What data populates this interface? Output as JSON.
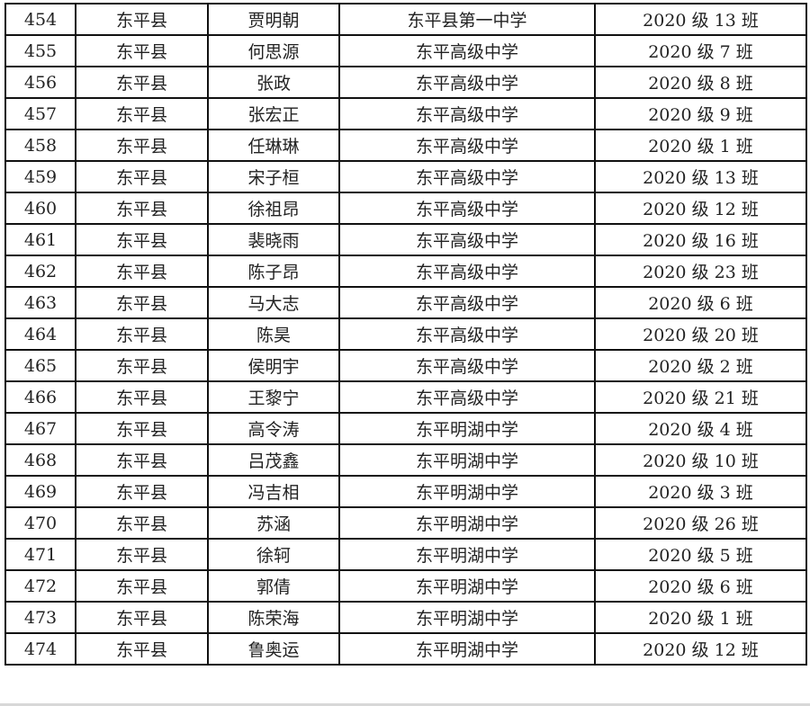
{
  "table": {
    "rows": [
      [
        "454",
        "东平县",
        "贾明朝",
        "东平县第一中学",
        "2020 级 13 班"
      ],
      [
        "455",
        "东平县",
        "何思源",
        "东平高级中学",
        "2020 级 7 班"
      ],
      [
        "456",
        "东平县",
        "张政",
        "东平高级中学",
        "2020 级 8 班"
      ],
      [
        "457",
        "东平县",
        "张宏正",
        "东平高级中学",
        "2020 级 9 班"
      ],
      [
        "458",
        "东平县",
        "任琳琳",
        "东平高级中学",
        "2020 级 1 班"
      ],
      [
        "459",
        "东平县",
        "宋子桓",
        "东平高级中学",
        "2020 级 13 班"
      ],
      [
        "460",
        "东平县",
        "徐祖昂",
        "东平高级中学",
        "2020 级 12 班"
      ],
      [
        "461",
        "东平县",
        "裴晓雨",
        "东平高级中学",
        "2020 级 16 班"
      ],
      [
        "462",
        "东平县",
        "陈子昂",
        "东平高级中学",
        "2020 级 23 班"
      ],
      [
        "463",
        "东平县",
        "马大志",
        "东平高级中学",
        "2020 级 6 班"
      ],
      [
        "464",
        "东平县",
        "陈昊",
        "东平高级中学",
        "2020 级 20 班"
      ],
      [
        "465",
        "东平县",
        "侯明宇",
        "东平高级中学",
        "2020 级 2 班"
      ],
      [
        "466",
        "东平县",
        "王黎宁",
        "东平高级中学",
        "2020 级 21 班"
      ],
      [
        "467",
        "东平县",
        "高令涛",
        "东平明湖中学",
        "2020 级 4 班"
      ],
      [
        "468",
        "东平县",
        "吕茂鑫",
        "东平明湖中学",
        "2020 级 10 班"
      ],
      [
        "469",
        "东平县",
        "冯吉相",
        "东平明湖中学",
        "2020 级 3 班"
      ],
      [
        "470",
        "东平县",
        "苏涵",
        "东平明湖中学",
        "2020 级 26 班"
      ],
      [
        "471",
        "东平县",
        "徐轲",
        "东平明湖中学",
        "2020 级 5 班"
      ],
      [
        "472",
        "东平县",
        "郭倩",
        "东平明湖中学",
        "2020 级 6 班"
      ],
      [
        "473",
        "东平县",
        "陈荣海",
        "东平明湖中学",
        "2020 级 1 班"
      ],
      [
        "474",
        "东平县",
        "鲁奥运",
        "东平明湖中学",
        "2020 级 12 班"
      ]
    ]
  }
}
